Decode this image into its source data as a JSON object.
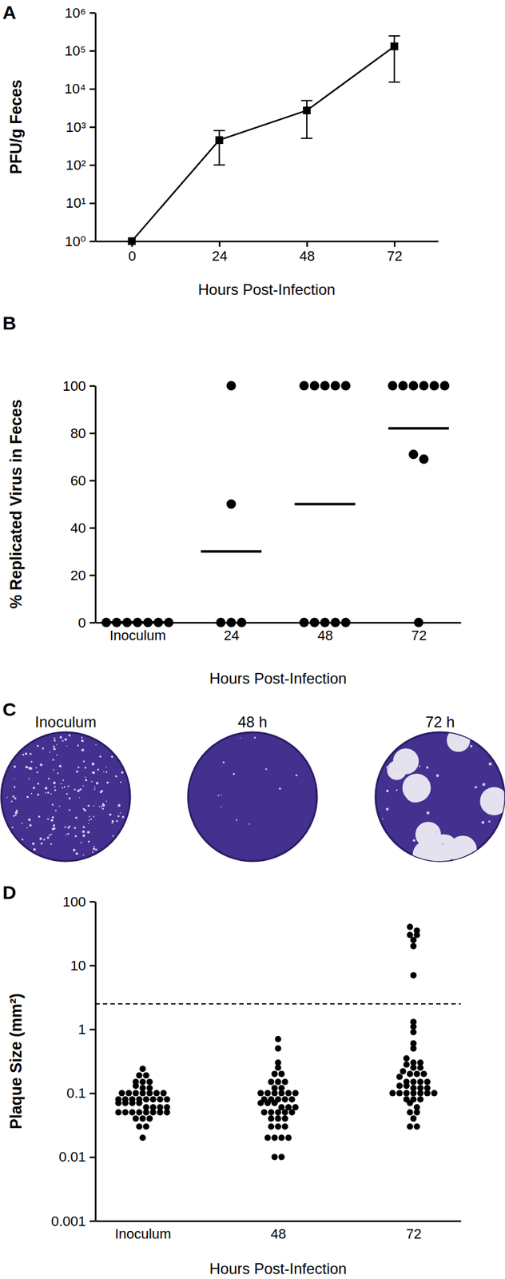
{
  "chart_data": [
    {
      "type": "line",
      "title": "A",
      "x_label": "Hours Post-Infection",
      "y_label": "PFU/g Feces",
      "x": [
        0,
        24,
        48,
        72
      ],
      "values": [
        1,
        450,
        2700,
        130000
      ],
      "errors": [
        0,
        350,
        2200,
        115000
      ],
      "xlim": [
        -10,
        84
      ],
      "xticks": [
        0,
        24,
        48,
        72
      ],
      "ylim": [
        1,
        1000000
      ],
      "yticks": [
        {
          "value": 1,
          "label": "10⁰"
        },
        {
          "value": 10,
          "label": "10¹"
        },
        {
          "value": 100,
          "label": "10²"
        },
        {
          "value": 1000,
          "label": "10³"
        },
        {
          "value": 10000,
          "label": "10⁴"
        },
        {
          "value": 100000,
          "label": "10⁵"
        },
        {
          "value": 1000000,
          "label": "10⁶"
        }
      ],
      "log": "y",
      "color": "#000000",
      "marker": "square"
    },
    {
      "type": "scatter",
      "title": "B",
      "x_label": "Hours Post-Infection",
      "y_label": "% Replicated Virus in Feces",
      "categories": [
        "Inoculum",
        "24",
        "48",
        "72"
      ],
      "values": [
        [
          0,
          0,
          0,
          0,
          0,
          0,
          0
        ],
        [
          100,
          50,
          0,
          0,
          0
        ],
        [
          100,
          100,
          100,
          100,
          100,
          0,
          0,
          0,
          0,
          0
        ],
        [
          100,
          100,
          100,
          100,
          100,
          100,
          71,
          69,
          0
        ]
      ],
      "means": [
        0,
        30,
        50,
        82
      ],
      "ylim": [
        0,
        100
      ],
      "yticks": [
        0,
        20,
        40,
        60,
        80,
        100
      ],
      "color": "#000000",
      "marker": "circle"
    },
    {
      "type": "image",
      "title": "C",
      "categories": [
        "Inoculum",
        "48 h",
        "72 h"
      ]
    },
    {
      "type": "scatter",
      "title": "D",
      "x_label": "Hours Post-Infection",
      "y_label": "Plaque Size (mm²)",
      "categories": [
        "Inoculum",
        "48",
        "72"
      ],
      "values": [
        [
          0.24,
          0.19,
          0.19,
          0.15,
          0.15,
          0.15,
          0.13,
          0.12,
          0.12,
          0.1,
          0.1,
          0.1,
          0.1,
          0.1,
          0.1,
          0.1,
          0.08,
          0.08,
          0.08,
          0.08,
          0.08,
          0.08,
          0.08,
          0.08,
          0.07,
          0.07,
          0.07,
          0.07,
          0.06,
          0.06,
          0.06,
          0.06,
          0.05,
          0.05,
          0.05,
          0.05,
          0.05,
          0.05,
          0.05,
          0.05,
          0.04,
          0.04,
          0.04,
          0.03,
          0.03,
          0.02
        ],
        [
          0.7,
          0.5,
          0.3,
          0.25,
          0.2,
          0.2,
          0.15,
          0.15,
          0.15,
          0.12,
          0.12,
          0.1,
          0.1,
          0.1,
          0.1,
          0.1,
          0.1,
          0.08,
          0.08,
          0.08,
          0.08,
          0.08,
          0.07,
          0.07,
          0.07,
          0.06,
          0.06,
          0.06,
          0.05,
          0.05,
          0.05,
          0.05,
          0.05,
          0.04,
          0.04,
          0.04,
          0.03,
          0.03,
          0.03,
          0.02,
          0.02,
          0.02,
          0.02,
          0.01,
          0.01
        ],
        [
          40,
          35,
          30,
          30,
          25,
          20,
          7,
          1.3,
          1.1,
          0.9,
          0.6,
          0.5,
          0.35,
          0.3,
          0.3,
          0.28,
          0.25,
          0.25,
          0.22,
          0.2,
          0.2,
          0.2,
          0.18,
          0.15,
          0.15,
          0.15,
          0.15,
          0.13,
          0.13,
          0.12,
          0.12,
          0.12,
          0.1,
          0.1,
          0.1,
          0.1,
          0.1,
          0.1,
          0.1,
          0.08,
          0.08,
          0.08,
          0.07,
          0.06,
          0.05,
          0.05,
          0.04,
          0.03,
          0.03
        ]
      ],
      "reference_line": 2.5,
      "ylim": [
        0.001,
        100
      ],
      "yticks": [
        0.001,
        0.01,
        0.1,
        1,
        10,
        100
      ],
      "log": "y",
      "color": "#000000",
      "marker": "circle"
    }
  ]
}
